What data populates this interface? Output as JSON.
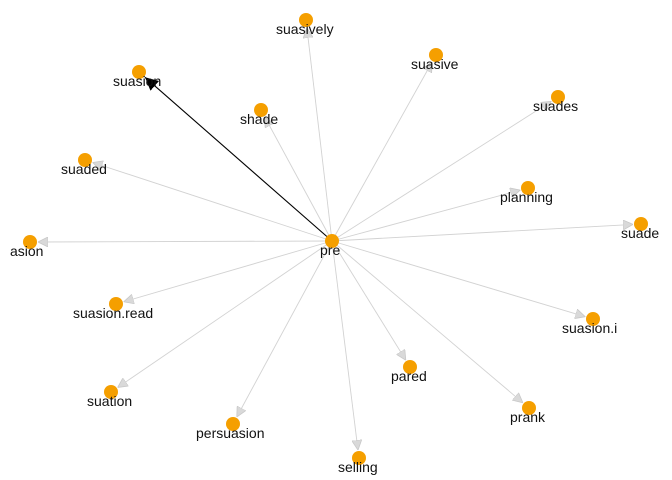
{
  "graph": {
    "center": {
      "id": "pre",
      "label": "pre"
    },
    "colors": {
      "node": "#f59f00",
      "edge": "#d2d2d2",
      "arrow": "#d9d9d9",
      "highlight_edge": "#000000",
      "label": "#111111",
      "background": "#ffffff"
    },
    "nodes": [
      {
        "id": "suasively",
        "label": "suasively"
      },
      {
        "id": "suasion",
        "label": "suasion",
        "highlighted": true
      },
      {
        "id": "suasive",
        "label": "suasive"
      },
      {
        "id": "shade",
        "label": "shade"
      },
      {
        "id": "suades",
        "label": "suades"
      },
      {
        "id": "suaded",
        "label": "suaded"
      },
      {
        "id": "planning",
        "label": "planning"
      },
      {
        "id": "asion",
        "label": "asion"
      },
      {
        "id": "suade",
        "label": "suade"
      },
      {
        "id": "suasion.read",
        "label": "suasion.read"
      },
      {
        "id": "suasion.i",
        "label": "suasion.i"
      },
      {
        "id": "pared",
        "label": "pared"
      },
      {
        "id": "suation",
        "label": "suation"
      },
      {
        "id": "prank",
        "label": "prank"
      },
      {
        "id": "persuasion",
        "label": "persuasion"
      },
      {
        "id": "selling",
        "label": "selling"
      }
    ]
  }
}
